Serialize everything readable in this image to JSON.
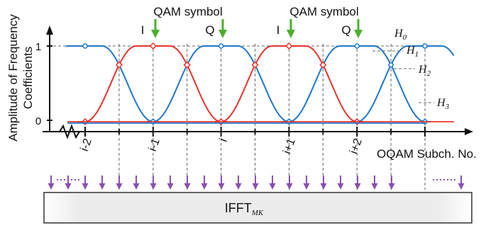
{
  "y_axis_label_line1": "Amplitude of Frequency",
  "y_axis_label_line2": "Coefficients",
  "y_tick_labels": [
    "1",
    "0"
  ],
  "x_axis_label": "OQAM Subch. No.",
  "x_tick_labels": [
    "i-2",
    "i-1",
    "i",
    "i+1",
    "i+2"
  ],
  "qam_labels": [
    {
      "text": "QAM symbol",
      "i_label": "I",
      "q_label": "Q"
    },
    {
      "text": "QAM symbol",
      "i_label": "I",
      "q_label": "Q"
    }
  ],
  "h_labels": [
    {
      "base": "H",
      "sub": "0"
    },
    {
      "base": "H",
      "sub": "1"
    },
    {
      "base": "H",
      "sub": "2"
    },
    {
      "base": "H",
      "sub": "3"
    }
  ],
  "ifft_label": {
    "base": "IFFT",
    "sub": "MK"
  },
  "coefficient_levels": [
    1,
    0.7,
    0.25,
    0.03
  ],
  "colors": {
    "blue": "#1f77c8",
    "red": "#e8332c",
    "green": "#4cae2e",
    "purple": "#8b4fb0",
    "dashed": "#666666",
    "axis": "#111111"
  }
}
